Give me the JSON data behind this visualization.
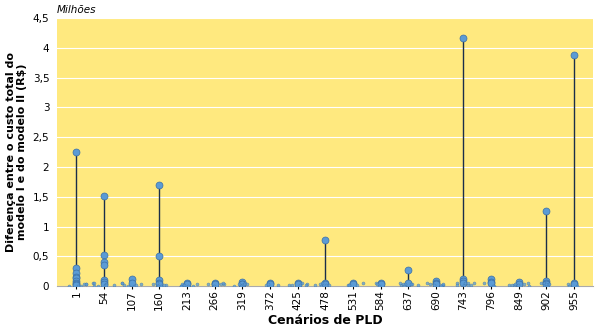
{
  "title": "",
  "xlabel": "Cenários de PLD",
  "ylabel": "Diferença entre o custo total do\nmodelo I e do modelo II (R$)",
  "ylabel2": "Milhões",
  "x_tick_labels": [
    "1",
    "54",
    "107",
    "160",
    "213",
    "266",
    "319",
    "372",
    "425",
    "478",
    "531",
    "584",
    "637",
    "690",
    "743",
    "796",
    "849",
    "902",
    "955"
  ],
  "ylim": [
    0,
    4.5
  ],
  "yticks": [
    0,
    0.5,
    1,
    1.5,
    2,
    2.5,
    3,
    3.5,
    4,
    4.5
  ],
  "background_color": "#FFE97F",
  "fig_background_color": "#ffffff",
  "stem_color": "#1a2e4a",
  "marker_color": "#5b9bd5",
  "marker_size": 5,
  "lollipop_data": {
    "1": [
      2.25,
      0.3,
      0.22,
      0.15,
      0.13,
      0.08,
      0.05,
      0.03,
      0.02
    ],
    "54": [
      1.52,
      0.52,
      0.4,
      0.35,
      0.1,
      0.07,
      0.04
    ],
    "107": [
      0.12,
      0.05
    ],
    "160": [
      1.7,
      0.5,
      0.1,
      0.06,
      0.04
    ],
    "213": [
      0.06,
      0.03
    ],
    "266": [
      0.05,
      0.04,
      0.03
    ],
    "319": [
      0.07,
      0.04,
      0.03
    ],
    "372": [
      0.05,
      0.03
    ],
    "425": [
      0.06,
      0.04
    ],
    "478": [
      0.77,
      0.06,
      0.04
    ],
    "531": [
      0.05,
      0.03
    ],
    "584": [
      0.05,
      0.03
    ],
    "637": [
      0.27,
      0.05
    ],
    "690": [
      0.08,
      0.06,
      0.04,
      0.03
    ],
    "743": [
      4.17,
      0.12,
      0.08,
      0.05
    ],
    "796": [
      0.12,
      0.07,
      0.05
    ],
    "849": [
      0.07,
      0.04
    ],
    "902": [
      1.27,
      0.08,
      0.05,
      0.03
    ],
    "955": [
      3.88,
      0.05,
      0.03
    ]
  },
  "xlabel_fontsize": 9,
  "ylabel_fontsize": 8,
  "tick_fontsize": 7.5,
  "milhoes_fontsize": 7.5
}
